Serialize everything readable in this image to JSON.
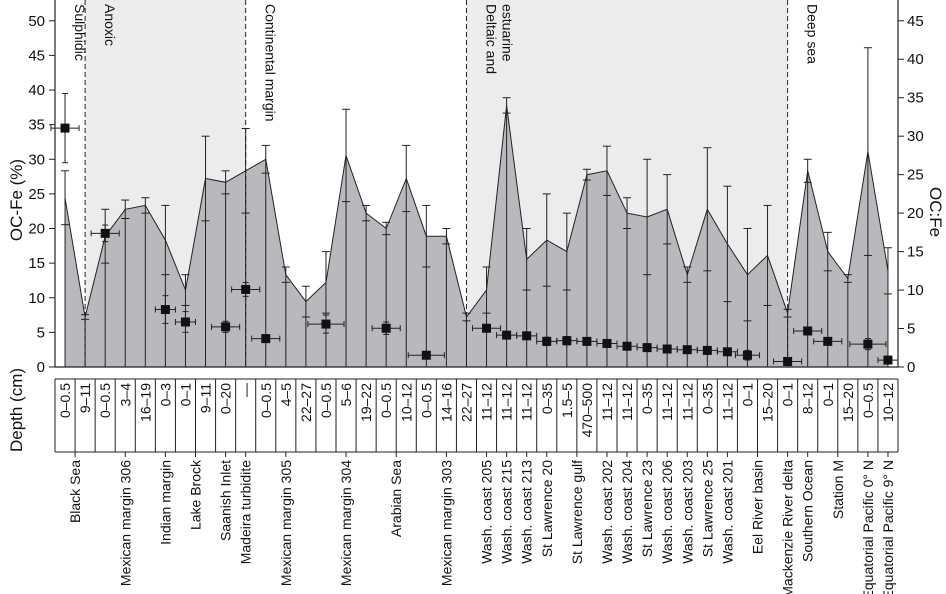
{
  "chart_data": {
    "type": "area",
    "y_left_label": "OC-Fe (%)",
    "y_right_label": "OC:Fe",
    "depth_label": "Depth (cm)",
    "y_left_ticks": [
      0,
      5,
      10,
      15,
      20,
      25,
      30,
      35,
      40,
      45,
      50
    ],
    "y_right_ticks": [
      0,
      5,
      10,
      15,
      20,
      25,
      30,
      35,
      40,
      45
    ],
    "y_left_range": [
      0,
      53
    ],
    "y_right_range": [
      0,
      47.7
    ],
    "n_positions": 42,
    "depths": [
      "0–0.5",
      "9–11",
      "0–0.5",
      "3–4",
      "16–19",
      "0–3",
      "0–1",
      "9–11",
      "0–20",
      "—",
      "0–0.5",
      "4–5",
      "22–27",
      "0–0.5",
      "5–6",
      "19–22",
      "0–0.5",
      "10–12",
      "0–0.5",
      "14–16",
      "22–27",
      "11–12",
      "11–12",
      "11–12",
      "0–35",
      "1.5–5",
      "470–500",
      "11–12",
      "11–12",
      "0–35",
      "11–12",
      "11–12",
      "0–35",
      "11–12",
      "0–1",
      "15–20",
      "0–1",
      "8–12",
      "0–1",
      "15–20",
      "0–0.5",
      "10–12"
    ],
    "sites": [
      {
        "name": "Black Sea",
        "pos": 0.5
      },
      {
        "name": "Mexican margin 306",
        "pos": 3
      },
      {
        "name": "Indian margin",
        "pos": 5
      },
      {
        "name": "Lake Brock",
        "pos": 6.5
      },
      {
        "name": "Saanish Inlet",
        "pos": 8
      },
      {
        "name": "Madeira turbidite",
        "pos": 9
      },
      {
        "name": "Mexican margin 305",
        "pos": 11
      },
      {
        "name": "Mexican margin 304",
        "pos": 14
      },
      {
        "name": "Arabian Sea",
        "pos": 16.5
      },
      {
        "name": "Mexican margin 303",
        "pos": 19
      },
      {
        "name": "Wash. coast 205",
        "pos": 21
      },
      {
        "name": "Wash. coast 215",
        "pos": 22
      },
      {
        "name": "Wash. coast 213",
        "pos": 23
      },
      {
        "name": "St Lawrence 20",
        "pos": 24
      },
      {
        "name": "St Lawrence gulf",
        "pos": 25.5
      },
      {
        "name": "Wash. coast 202",
        "pos": 27
      },
      {
        "name": "Wash. coast 204",
        "pos": 28
      },
      {
        "name": "St Lawrence 23",
        "pos": 29
      },
      {
        "name": "Wash. coast 206",
        "pos": 30
      },
      {
        "name": "Wash. coast 203",
        "pos": 31
      },
      {
        "name": "St Lawrence 25",
        "pos": 32
      },
      {
        "name": "Wash. coast 201",
        "pos": 33
      },
      {
        "name": "Eel River basin",
        "pos": 34.5
      },
      {
        "name": "Mackenzie River delta",
        "pos": 36
      },
      {
        "name": "Southern Ocean",
        "pos": 37
      },
      {
        "name": "Station M",
        "pos": 38.5
      },
      {
        "name": "Equatorial Pacific 0° N",
        "pos": 40
      },
      {
        "name": "Equatorial Pacific 9° N",
        "pos": 41
      }
    ],
    "regions": [
      {
        "label": "Sulphidic",
        "start": 0,
        "end": 1.5,
        "shaded": false
      },
      {
        "label": "Anoxic",
        "start": 1.5,
        "end": 9.5,
        "shaded": true
      },
      {
        "label": "Continental margin",
        "start": 9.5,
        "end": 20.5,
        "shaded": false
      },
      {
        "label": "Deltaic and estuarine",
        "start": 20.5,
        "end": 36.5,
        "shaded": true
      },
      {
        "label": "Deep sea",
        "start": 36.5,
        "end": 42,
        "shaded": false
      }
    ],
    "series": [
      {
        "name": "OC:Fe",
        "axis": "right",
        "values": [
          22,
          6.5,
          17,
          20.5,
          21,
          16.5,
          10,
          24.5,
          24,
          25.5,
          27,
          12,
          8.5,
          11,
          27.5,
          20,
          18,
          24.5,
          17,
          17,
          6.5,
          10,
          34,
          14,
          16.5,
          15,
          25,
          25.5,
          20,
          19.5,
          20.5,
          12,
          20.5,
          16,
          12,
          14.5,
          7,
          25.5,
          15,
          11.5,
          28,
          12.5
        ],
        "err": [
          3.5,
          0.3,
          3.5,
          1.2,
          1,
          4.5,
          2,
          5.5,
          1.5,
          5.5,
          1.8,
          1,
          2,
          4,
          6,
          1,
          0.8,
          4.3,
          4,
          1,
          0.5,
          3,
          1,
          4,
          6,
          5,
          0.7,
          3.2,
          2,
          7.5,
          4.5,
          1,
          8,
          7.5,
          6,
          6.5,
          0.5,
          1.5,
          2.5,
          0.5,
          13.5,
          3
        ]
      },
      {
        "name": "OC-Fe",
        "axis": "left",
        "points": [
          {
            "pos": 0,
            "y": 34.5,
            "yerr": 5.0,
            "xerr": 0.7
          },
          {
            "pos": 2,
            "y": 19.3,
            "yerr": 1.2,
            "xerr": 0.7
          },
          {
            "pos": 5,
            "y": 8.3,
            "yerr": 2.0,
            "xerr": 0.5
          },
          {
            "pos": 6,
            "y": 6.5,
            "yerr": 1.5,
            "xerr": 0.5
          },
          {
            "pos": 8,
            "y": 5.8,
            "yerr": 0.8,
            "xerr": 0.7
          },
          {
            "pos": 9,
            "y": 11.2,
            "yerr": 1.0,
            "xerr": 0.7
          },
          {
            "pos": 10,
            "y": 4.1,
            "yerr": 0.2,
            "xerr": 0.7
          },
          {
            "pos": 13,
            "y": 6.2,
            "yerr": 1.3,
            "xerr": 0.9
          },
          {
            "pos": 16,
            "y": 5.6,
            "yerr": 0.9,
            "xerr": 0.7
          },
          {
            "pos": 18,
            "y": 1.7,
            "yerr": 0.2,
            "xerr": 0.9
          },
          {
            "pos": 21,
            "y": 5.6,
            "yerr": 0.4,
            "xerr": 0.7
          },
          {
            "pos": 22,
            "y": 4.6,
            "yerr": 0.3,
            "xerr": 0.5
          },
          {
            "pos": 23,
            "y": 4.5,
            "yerr": 0.3,
            "xerr": 0.5
          },
          {
            "pos": 24,
            "y": 3.7,
            "yerr": 0.6,
            "xerr": 0.5
          },
          {
            "pos": 25,
            "y": 3.8,
            "yerr": 0.6,
            "xerr": 0.5
          },
          {
            "pos": 26,
            "y": 3.7,
            "yerr": 0.4,
            "xerr": 0.5
          },
          {
            "pos": 27,
            "y": 3.4,
            "yerr": 0.4,
            "xerr": 0.5
          },
          {
            "pos": 28,
            "y": 3.0,
            "yerr": 0.4,
            "xerr": 0.5
          },
          {
            "pos": 29,
            "y": 2.8,
            "yerr": 0.4,
            "xerr": 0.5
          },
          {
            "pos": 30,
            "y": 2.6,
            "yerr": 0.4,
            "xerr": 0.5
          },
          {
            "pos": 31,
            "y": 2.5,
            "yerr": 0.4,
            "xerr": 0.5
          },
          {
            "pos": 32,
            "y": 2.4,
            "yerr": 0.4,
            "xerr": 0.5
          },
          {
            "pos": 33,
            "y": 2.2,
            "yerr": 0.5,
            "xerr": 0.5
          },
          {
            "pos": 34,
            "y": 1.7,
            "yerr": 0.7,
            "xerr": 0.6
          },
          {
            "pos": 36,
            "y": 0.8,
            "yerr": 0.3,
            "xerr": 0.7
          },
          {
            "pos": 37,
            "y": 5.2,
            "yerr": 0.5,
            "xerr": 0.7
          },
          {
            "pos": 38,
            "y": 3.7,
            "yerr": 0.3,
            "xerr": 0.7
          },
          {
            "pos": 40,
            "y": 3.3,
            "yerr": 0.8,
            "xerr": 0.9
          },
          {
            "pos": 41,
            "y": 1.0,
            "yerr": 0.2,
            "xerr": 0.5
          }
        ]
      }
    ]
  }
}
